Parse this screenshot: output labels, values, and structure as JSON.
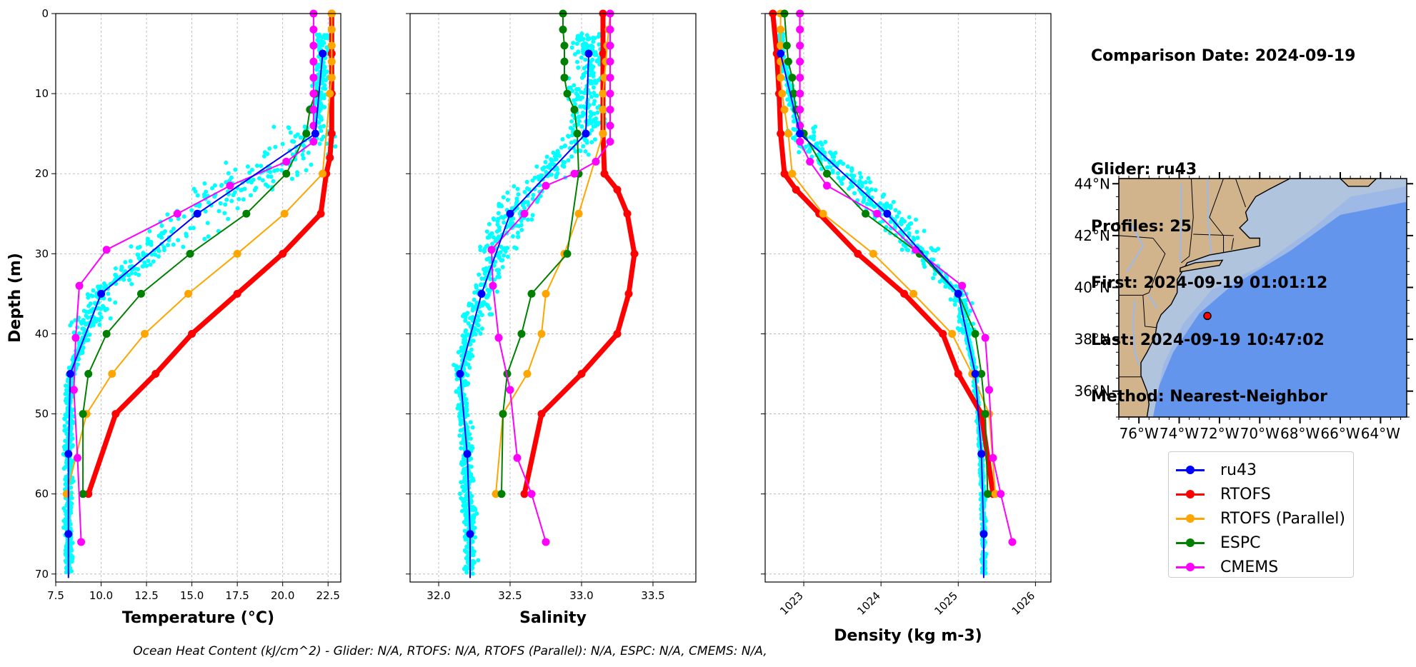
{
  "info": {
    "comparison_date": "Comparison Date: 2024-09-19",
    "glider": "Glider: ru43",
    "profiles": "Profiles: 25",
    "first": "First: 2024-09-19 01:01:12",
    "last": "Last: 2024-09-19 10:47:02",
    "method": "Method: Nearest-Neighbor"
  },
  "footer": "Ocean Heat Content (kJ/cm^2) - Glider: N/A,  RTOFS: N/A,  RTOFS (Parallel): N/A,  ESPC: N/A,  CMEMS: N/A,",
  "legend": [
    {
      "label": "ru43",
      "color": "#0000ff"
    },
    {
      "label": "RTOFS",
      "color": "#ff0000"
    },
    {
      "label": "RTOFS (Parallel)",
      "color": "#ffa500"
    },
    {
      "label": "ESPC",
      "color": "#008000"
    },
    {
      "label": "CMEMS",
      "color": "#ff00ff"
    }
  ],
  "map": {
    "lat_labels": [
      "44°N",
      "42°N",
      "40°N",
      "38°N",
      "36°N"
    ],
    "lon_labels": [
      "76°W",
      "74°W",
      "72°W",
      "70°W",
      "68°W",
      "66°W",
      "64°W"
    ],
    "glider_position": {
      "lon": -72.6,
      "lat": 38.9
    }
  },
  "chart_data": [
    {
      "type": "line",
      "xlabel": "Temperature (°C)",
      "ylabel": "Depth (m)",
      "xlim": [
        7.5,
        23.2
      ],
      "ylim": [
        71,
        0
      ],
      "xticks": [
        "7.5",
        "10.0",
        "12.5",
        "15.0",
        "17.5",
        "20.0",
        "22.5"
      ],
      "yticks": [
        "0",
        "10",
        "20",
        "30",
        "40",
        "50",
        "60",
        "70"
      ],
      "grid": true,
      "series": [
        {
          "name": "ru43",
          "color": "#0000ff",
          "x": [
            22.2,
            21.8,
            15.3,
            10.0,
            8.3,
            8.2,
            8.2,
            8.2
          ],
          "y": [
            5,
            15,
            25,
            35,
            45,
            55,
            65,
            70.5
          ]
        },
        {
          "name": "RTOFS",
          "color": "#ff0000",
          "x": [
            22.7,
            22.7,
            22.7,
            22.7,
            22.6,
            22.4,
            22.1,
            20.0,
            17.5,
            15.0,
            13.0,
            10.8,
            9.3
          ],
          "y": [
            0,
            5,
            10,
            15,
            18,
            20,
            25,
            30,
            35,
            40,
            45,
            50,
            60
          ]
        },
        {
          "name": "RTOFS (Parallel)",
          "color": "#ffa500",
          "x": [
            22.7,
            22.7,
            22.7,
            22.7,
            22.7,
            22.6,
            22.2,
            20.1,
            17.5,
            14.8,
            12.4,
            10.6,
            9.2,
            8.1
          ],
          "y": [
            0,
            2,
            4,
            6,
            8,
            10,
            20,
            25,
            30,
            35,
            40,
            45,
            50,
            60
          ]
        },
        {
          "name": "ESPC",
          "color": "#008000",
          "x": [
            21.8,
            21.5,
            21.3,
            20.2,
            18.0,
            14.9,
            12.2,
            10.3,
            9.3,
            9.0,
            9.0
          ],
          "y": [
            10,
            12,
            15,
            20,
            25,
            30,
            35,
            40,
            45,
            50,
            60
          ]
        },
        {
          "name": "CMEMS",
          "color": "#ff00ff",
          "x": [
            21.7,
            21.7,
            21.7,
            21.7,
            21.7,
            21.7,
            21.7,
            21.7,
            21.7,
            20.2,
            17.1,
            14.2,
            10.3,
            8.8,
            8.6,
            8.5,
            8.7,
            8.9
          ],
          "y": [
            0,
            2,
            4,
            6,
            8,
            10,
            12,
            14,
            16,
            18.5,
            21.5,
            25,
            29.5,
            34,
            40.5,
            47,
            55.5,
            66
          ]
        }
      ]
    },
    {
      "type": "line",
      "xlabel": "Salinity",
      "xlim": [
        31.8,
        33.8
      ],
      "ylim": [
        71,
        0
      ],
      "xticks": [
        "32.0",
        "32.5",
        "33.0",
        "33.5"
      ],
      "grid": true,
      "series": [
        {
          "name": "ru43",
          "color": "#0000ff",
          "x": [
            33.05,
            33.03,
            32.5,
            32.3,
            32.15,
            32.2,
            32.22,
            32.22
          ],
          "y": [
            5,
            15,
            25,
            35,
            45,
            55,
            65,
            70.5
          ]
        },
        {
          "name": "RTOFS",
          "color": "#ff0000",
          "x": [
            33.15,
            33.15,
            33.15,
            33.15,
            33.16,
            33.25,
            33.32,
            33.37,
            33.33,
            33.25,
            33.0,
            32.72,
            32.6
          ],
          "y": [
            0,
            5,
            10,
            15,
            20,
            22,
            25,
            30,
            35,
            40,
            45,
            50,
            60
          ]
        },
        {
          "name": "RTOFS (Parallel)",
          "color": "#ffa500",
          "x": [
            33.2,
            33.19,
            33.18,
            33.17,
            33.16,
            33.15,
            33.15,
            33.15,
            32.98,
            32.88,
            32.75,
            32.72,
            32.62,
            32.45,
            32.4
          ],
          "y": [
            0,
            2,
            4,
            6,
            8,
            10,
            12,
            15,
            25,
            30,
            35,
            40,
            45,
            50,
            60
          ]
        },
        {
          "name": "ESPC",
          "color": "#008000",
          "x": [
            32.87,
            32.87,
            32.88,
            32.88,
            32.88,
            32.9,
            32.95,
            32.97,
            32.98,
            32.9,
            32.65,
            32.58,
            32.48,
            32.45,
            32.44
          ],
          "y": [
            0,
            2,
            4,
            6,
            8,
            10,
            12,
            15,
            20,
            30,
            35,
            40,
            45,
            50,
            60
          ]
        },
        {
          "name": "CMEMS",
          "color": "#ff00ff",
          "x": [
            33.2,
            33.2,
            33.2,
            33.2,
            33.2,
            33.2,
            33.2,
            33.2,
            33.2,
            33.1,
            32.95,
            32.75,
            32.6,
            32.37,
            32.38,
            32.42,
            32.5,
            32.55,
            32.65,
            32.75
          ],
          "y": [
            0,
            2,
            4,
            6,
            8,
            10,
            12,
            14,
            16,
            18.5,
            20,
            21.5,
            25,
            29.5,
            34,
            40.5,
            47,
            55.5,
            60,
            66
          ]
        }
      ]
    },
    {
      "type": "line",
      "xlabel": "Density (kg m-3)",
      "xlim": [
        1022.5,
        1026.2
      ],
      "ylim": [
        71,
        0
      ],
      "xticks": [
        "1023",
        "1024",
        "1025",
        "1026"
      ],
      "grid": true,
      "series": [
        {
          "name": "ru43",
          "color": "#0000ff",
          "x": [
            1022.7,
            1022.95,
            1024.08,
            1025.0,
            1025.22,
            1025.3,
            1025.33,
            1025.33
          ],
          "y": [
            5,
            15,
            25,
            35,
            45,
            55,
            65,
            70.5
          ]
        },
        {
          "name": "RTOFS",
          "color": "#ff0000",
          "x": [
            1022.6,
            1022.65,
            1022.68,
            1022.7,
            1022.75,
            1022.9,
            1023.2,
            1023.7,
            1024.3,
            1024.8,
            1025.0,
            1025.3,
            1025.45
          ],
          "y": [
            0,
            5,
            10,
            15,
            20,
            22,
            25,
            30,
            35,
            40,
            45,
            50,
            60
          ]
        },
        {
          "name": "RTOFS (Parallel)",
          "color": "#ffa500",
          "x": [
            1022.7,
            1022.7,
            1022.7,
            1022.7,
            1022.7,
            1022.72,
            1022.75,
            1022.8,
            1022.85,
            1023.25,
            1023.9,
            1024.42,
            1024.92,
            1025.18,
            1025.4,
            1025.48
          ],
          "y": [
            0,
            2,
            4,
            6,
            8,
            10,
            12,
            15,
            20,
            25,
            30,
            35,
            40,
            45,
            50,
            60
          ]
        },
        {
          "name": "ESPC",
          "color": "#008000",
          "x": [
            1022.75,
            1022.78,
            1022.8,
            1022.85,
            1022.87,
            1022.9,
            1023.0,
            1023.3,
            1023.8,
            1024.5,
            1025.0,
            1025.22,
            1025.3,
            1025.35,
            1025.38
          ],
          "y": [
            0,
            4,
            6,
            8,
            10,
            12,
            15,
            20,
            25,
            30,
            35,
            40,
            45,
            50,
            60
          ]
        },
        {
          "name": "CMEMS",
          "color": "#ff00ff",
          "x": [
            1022.95,
            1022.95,
            1022.95,
            1022.95,
            1022.95,
            1022.95,
            1022.95,
            1022.95,
            1022.95,
            1023.08,
            1023.3,
            1023.95,
            1024.45,
            1025.05,
            1025.35,
            1025.4,
            1025.45,
            1025.55,
            1025.7
          ],
          "y": [
            0,
            2,
            4,
            6,
            8,
            10,
            12,
            14,
            16,
            18.5,
            21.5,
            25,
            29.5,
            34,
            40.5,
            47,
            55.5,
            60,
            66
          ]
        }
      ]
    }
  ]
}
